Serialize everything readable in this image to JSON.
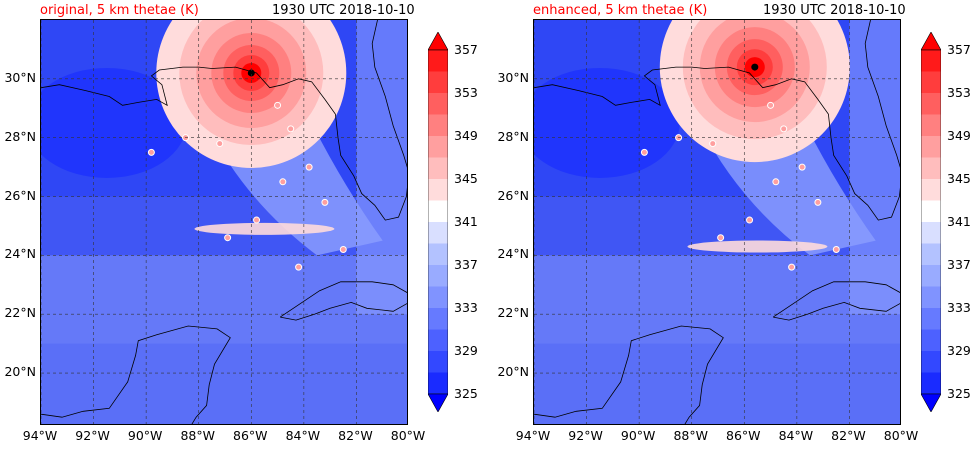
{
  "panels": [
    {
      "title": "original, 5 km thetae (K)",
      "time": "1930 UTC 2018-10-10",
      "storm_center": {
        "lon": -86.0,
        "lat": 30.2
      },
      "warm_band_lat": 24.9
    },
    {
      "title": "enhanced, 5 km thetae (K)",
      "time": "1930 UTC 2018-10-10",
      "storm_center": {
        "lon": -85.6,
        "lat": 30.4
      },
      "warm_band_lat": 24.3
    }
  ],
  "map": {
    "lon_range": [
      -94,
      -80
    ],
    "lat_range": [
      18.2,
      32
    ]
  },
  "lat_ticks": [
    "30°N",
    "28°N",
    "26°N",
    "24°N",
    "22°N",
    "20°N"
  ],
  "lat_values": [
    30,
    28,
    26,
    24,
    22,
    20
  ],
  "lon_ticks": [
    "94°W",
    "92°W",
    "90°W",
    "88°W",
    "86°W",
    "84°W",
    "82°W",
    "80°W"
  ],
  "lon_values": [
    -94,
    -92,
    -90,
    -88,
    -86,
    -84,
    -82,
    -80
  ],
  "colorbar": {
    "ticks": [
      "357",
      "353",
      "349",
      "345",
      "341",
      "337",
      "333",
      "329",
      "325"
    ],
    "levels": [
      325,
      327,
      329,
      331,
      333,
      335,
      337,
      339,
      341,
      343,
      345,
      347,
      349,
      351,
      353,
      355,
      357
    ],
    "colors": [
      "#0000ff",
      "#1a2bff",
      "#3348ff",
      "#4d61ff",
      "#667aff",
      "#8093ff",
      "#99abff",
      "#b3c2ff",
      "#d9dfff",
      "#ffffff",
      "#ffdcdc",
      "#ffbdbd",
      "#ff9f9f",
      "#ff8080",
      "#ff5f5f",
      "#ff3d3d",
      "#ff1a1a",
      "#ff0000"
    ]
  }
}
